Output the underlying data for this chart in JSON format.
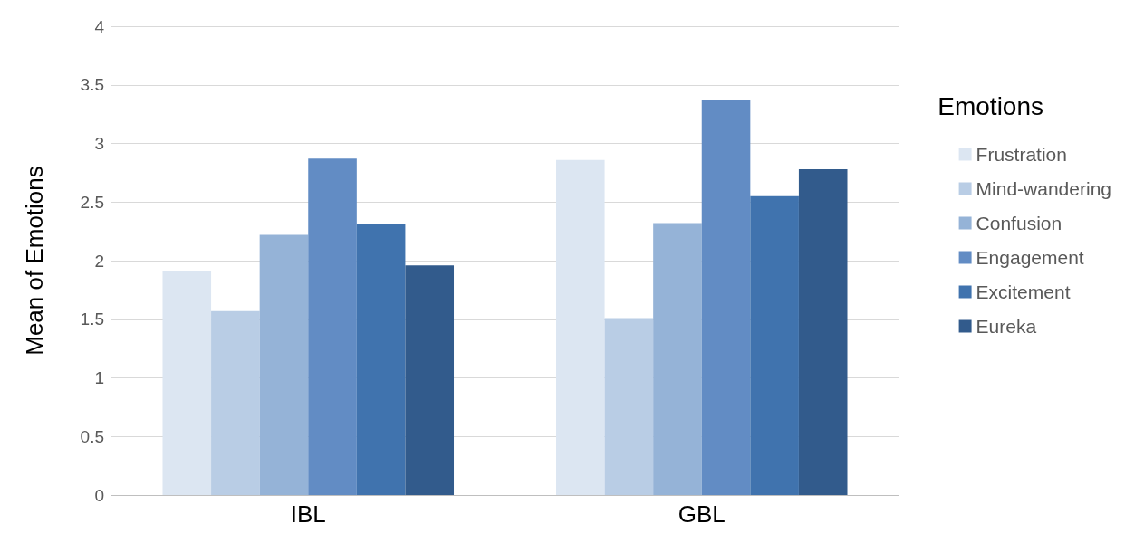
{
  "chart_data": {
    "type": "bar",
    "ylabel": "Mean of Emotions",
    "legend_title": "Emotions",
    "categories": [
      "IBL",
      "GBL"
    ],
    "series": [
      {
        "name": "Frustration",
        "color": "#dce6f2",
        "values": [
          1.91,
          2.86
        ]
      },
      {
        "name": "Mind-wandering",
        "color": "#b9cde5",
        "values": [
          1.57,
          1.51
        ]
      },
      {
        "name": "Confusion",
        "color": "#95b3d7",
        "values": [
          2.22,
          2.32
        ]
      },
      {
        "name": "Engagement",
        "color": "#628cc4",
        "values": [
          2.87,
          3.37
        ]
      },
      {
        "name": "Excitement",
        "color": "#4073ae",
        "values": [
          2.31,
          2.55
        ]
      },
      {
        "name": "Eureka",
        "color": "#325b8c",
        "values": [
          1.96,
          2.78
        ]
      }
    ],
    "ylim": [
      0,
      4
    ],
    "yticks": [
      0,
      0.5,
      1,
      1.5,
      2,
      2.5,
      3,
      3.5,
      4
    ],
    "grid": "y",
    "legend": "right"
  }
}
